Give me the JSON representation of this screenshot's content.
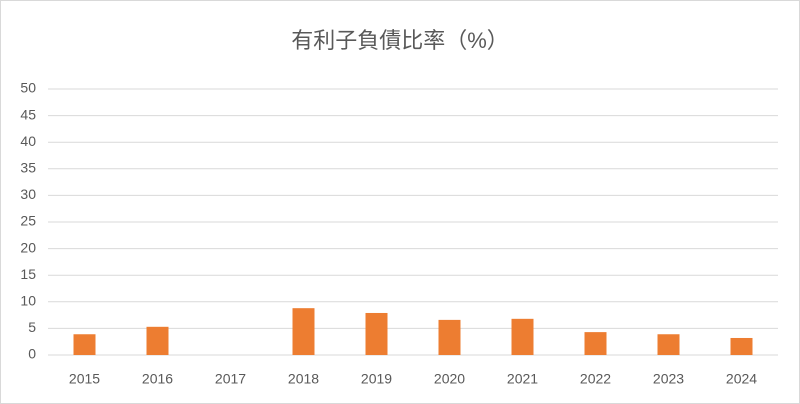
{
  "chart_data": {
    "type": "bar",
    "title": "有利子負債比率（%）",
    "categories": [
      "2015",
      "2016",
      "2017",
      "2018",
      "2019",
      "2020",
      "2021",
      "2022",
      "2023",
      "2024"
    ],
    "values": [
      3.9,
      5.3,
      null,
      8.8,
      7.9,
      6.6,
      6.8,
      4.3,
      3.9,
      3.2
    ],
    "color": "#ed7d31",
    "ylim": [
      0,
      50
    ],
    "yticks": [
      0,
      5,
      10,
      15,
      20,
      25,
      30,
      35,
      40,
      45,
      50
    ],
    "grid": true
  }
}
